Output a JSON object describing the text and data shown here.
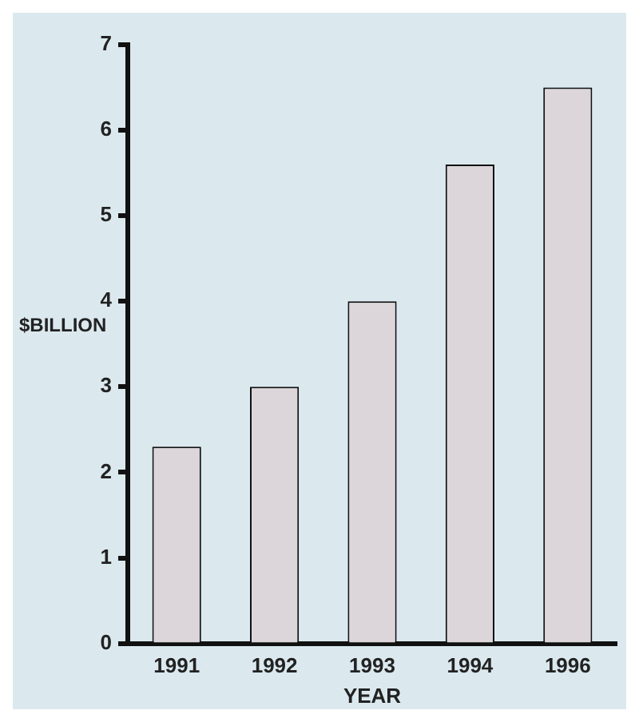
{
  "chart_data": {
    "type": "bar",
    "xlabel": "YEAR",
    "ylabel": "$BILLION",
    "categories": [
      "1991",
      "1992",
      "1993",
      "1994",
      "1996"
    ],
    "values": [
      2.3,
      3.0,
      4.0,
      5.6,
      6.5
    ],
    "color": "#dcd6da",
    "ylim": [
      0,
      7
    ],
    "yticks": [
      0,
      1,
      2,
      3,
      4,
      5,
      6,
      7
    ],
    "grid": false,
    "legend": false
  }
}
